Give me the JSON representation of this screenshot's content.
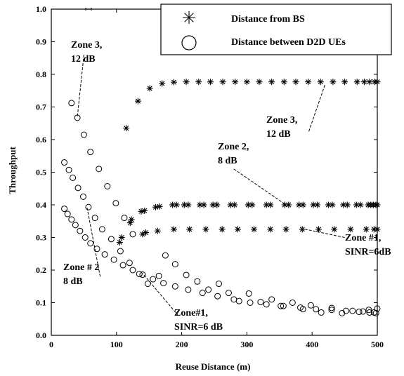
{
  "chart_data": {
    "type": "scatter",
    "title": "",
    "xlabel": "Reuse Distance (m)",
    "ylabel": "Throughput",
    "xlim": [
      0,
      500
    ],
    "ylim": [
      0,
      1.0
    ],
    "x_ticks": [
      "0",
      "100",
      "200",
      "300",
      "400",
      "500"
    ],
    "y_ticks": [
      "0.0",
      "0.1",
      "0.2",
      "0.3",
      "0.4",
      "0.5",
      "0.6",
      "0.7",
      "0.8",
      "0.9",
      "1.0"
    ],
    "grid": false,
    "legend": {
      "position": "top-right",
      "entries": [
        {
          "marker": "asterisk",
          "label": "Distance from BS"
        },
        {
          "marker": "circle",
          "label": "Distance between D2D UEs"
        }
      ]
    },
    "series": [
      {
        "marker": "asterisk",
        "x": [
          115,
          133,
          151,
          170,
          188,
          207,
          226,
          244,
          263,
          282,
          300,
          319,
          338,
          357,
          375,
          394,
          413,
          432,
          450,
          469,
          480,
          488,
          496,
          500
        ],
        "values": [
          0.635,
          0.718,
          0.757,
          0.772,
          0.776,
          0.777,
          0.777,
          0.777,
          0.777,
          0.777,
          0.777,
          0.777,
          0.777,
          0.777,
          0.777,
          0.777,
          0.777,
          0.777,
          0.777,
          0.777,
          0.777,
          0.777,
          0.777,
          0.777
        ]
      },
      {
        "marker": "asterisk",
        "x": [
          108,
          121,
          138,
          143,
          160,
          166,
          186,
          192,
          204,
          210,
          228,
          234,
          248,
          254,
          275,
          281,
          302,
          308,
          330,
          336,
          358,
          364,
          380,
          386,
          402,
          408,
          425,
          431,
          448,
          454,
          468,
          474,
          486,
          490,
          494,
          498,
          500
        ],
        "values": [
          0.3,
          0.345,
          0.38,
          0.382,
          0.393,
          0.395,
          0.4,
          0.4,
          0.4,
          0.4,
          0.4,
          0.4,
          0.4,
          0.4,
          0.4,
          0.4,
          0.4,
          0.4,
          0.4,
          0.4,
          0.4,
          0.4,
          0.4,
          0.4,
          0.4,
          0.4,
          0.4,
          0.4,
          0.4,
          0.4,
          0.4,
          0.4,
          0.4,
          0.4,
          0.4,
          0.4,
          0.4
        ]
      },
      {
        "marker": "asterisk",
        "x": [
          105,
          123,
          140,
          145,
          163,
          188,
          212,
          237,
          262,
          286,
          311,
          336,
          360,
          385,
          410,
          434,
          459,
          483,
          495,
          500
        ],
        "values": [
          0.285,
          0.355,
          0.31,
          0.315,
          0.32,
          0.325,
          0.325,
          0.325,
          0.325,
          0.325,
          0.325,
          0.325,
          0.325,
          0.325,
          0.325,
          0.325,
          0.325,
          0.325,
          0.325,
          0.325
        ]
      },
      {
        "marker": "circle",
        "x": [
          31,
          40,
          50,
          60,
          73,
          86,
          99,
          112,
          125
        ],
        "values": [
          0.712,
          0.667,
          0.615,
          0.562,
          0.51,
          0.457,
          0.405,
          0.36,
          0.31
        ]
      },
      {
        "marker": "circle",
        "x": [
          20,
          27,
          33,
          41,
          49,
          57,
          67,
          78,
          92,
          106,
          120,
          135,
          148,
          165,
          175,
          190,
          207,
          224,
          241,
          257,
          272,
          288,
          303,
          321,
          338,
          352,
          370,
          386,
          398,
          414,
          430,
          446,
          462,
          478,
          487,
          495,
          500
        ],
        "values": [
          0.53,
          0.507,
          0.483,
          0.452,
          0.425,
          0.393,
          0.36,
          0.325,
          0.295,
          0.258,
          0.222,
          0.188,
          0.158,
          0.182,
          0.245,
          0.218,
          0.185,
          0.165,
          0.14,
          0.158,
          0.13,
          0.105,
          0.128,
          0.102,
          0.11,
          0.09,
          0.1,
          0.08,
          0.092,
          0.07,
          0.084,
          0.068,
          0.075,
          0.073,
          0.078,
          0.07,
          0.082
        ]
      },
      {
        "marker": "circle",
        "x": [
          20,
          25,
          31,
          37,
          44,
          52,
          60,
          70,
          82,
          96,
          110,
          125,
          140,
          156,
          172,
          190,
          210,
          232,
          255,
          280,
          305,
          330,
          356,
          382,
          406,
          430,
          452,
          472,
          488,
          498
        ],
        "values": [
          0.388,
          0.372,
          0.355,
          0.338,
          0.32,
          0.3,
          0.282,
          0.265,
          0.248,
          0.232,
          0.215,
          0.2,
          0.186,
          0.172,
          0.16,
          0.15,
          0.14,
          0.13,
          0.12,
          0.11,
          0.1,
          0.095,
          0.09,
          0.085,
          0.08,
          0.078,
          0.075,
          0.072,
          0.07,
          0.068
        ]
      }
    ],
    "annotations": [
      {
        "lines": [
          "Zone 3,",
          "12 dB"
        ],
        "pointer": {
          "from": [
            50,
            0.86
          ],
          "to": [
            40,
            0.67
          ]
        }
      },
      {
        "lines": [
          "Zone 3,",
          "12 dB"
        ],
        "pointer": {
          "from": [
            395,
            0.625
          ],
          "to": [
            420,
            0.77
          ]
        }
      },
      {
        "lines": [
          "Zone 2,",
          "8 dB"
        ],
        "pointer": {
          "from": [
            280,
            0.51
          ],
          "to": [
            360,
            0.4
          ]
        }
      },
      {
        "lines": [
          "Zone #1,",
          "SINR=6dB"
        ],
        "pointer": {
          "from": [
            450,
            0.3
          ],
          "to": [
            390,
            0.325
          ]
        }
      },
      {
        "lines": [
          "Zone # 2",
          "8 dB"
        ],
        "pointer": {
          "from": [
            75,
            0.18
          ],
          "to": [
            55,
            0.39
          ]
        }
      },
      {
        "lines": [
          "Zone#1,",
          "SINR=6  dB"
        ],
        "pointer": {
          "from": [
            195,
            0.06
          ],
          "to": [
            140,
            0.19
          ]
        }
      }
    ]
  }
}
